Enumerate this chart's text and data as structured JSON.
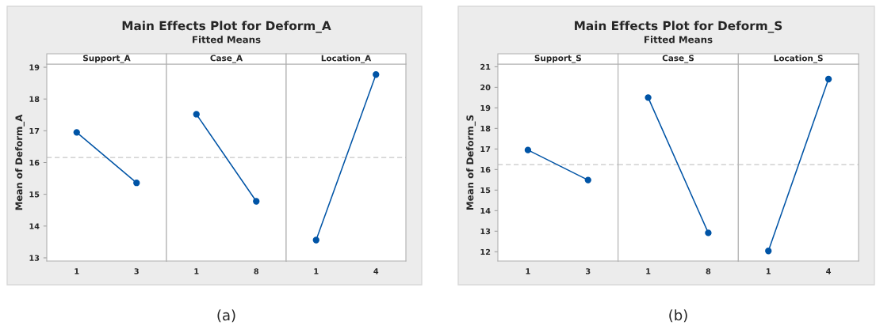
{
  "chart_data": [
    {
      "type": "line",
      "xlabel": "Support_A",
      "ylabel": "Mean of Deform_A",
      "categories": [
        "1",
        "3"
      ],
      "values": [
        16.95,
        15.36
      ],
      "color": "#0054a6",
      "marker": "circle",
      "ylim": [
        12.9,
        19.1
      ],
      "yticks": [
        13,
        14,
        15,
        16,
        17,
        18,
        19
      ],
      "ref_lines": [
        {
          "axis": "y",
          "value": 16.16,
          "color": "#c8c8c8",
          "line_style": "dashed"
        }
      ],
      "grid": false
    },
    {
      "type": "line",
      "title": "Main Effects Plot for Deform_A",
      "subtitle": "Fitted Means",
      "annotations": [
        "(a)"
      ],
      "xlabel": "Case_A",
      "categories": [
        "1",
        "8"
      ],
      "values": [
        17.52,
        14.78
      ],
      "color": "#0054a6",
      "marker": "circle",
      "ylim": [
        12.9,
        19.1
      ],
      "tick_labels": "x",
      "ref_lines": [
        {
          "axis": "y",
          "value": 16.16,
          "color": "#c8c8c8",
          "line_style": "dashed"
        }
      ],
      "grid": false
    },
    {
      "type": "line",
      "xlabel": "Location_A",
      "categories": [
        "1",
        "4"
      ],
      "values": [
        13.56,
        18.77
      ],
      "color": "#0054a6",
      "marker": "circle",
      "ylim": [
        12.9,
        19.1
      ],
      "tick_labels": "x",
      "ref_lines": [
        {
          "axis": "y",
          "value": 16.16,
          "color": "#c8c8c8",
          "line_style": "dashed"
        }
      ],
      "grid": false
    },
    {
      "type": "line",
      "xlabel": "Support_S",
      "ylabel": "Mean of Deform_S",
      "categories": [
        "1",
        "3"
      ],
      "values": [
        16.95,
        15.49
      ],
      "color": "#0054a6",
      "marker": "circle",
      "ylim": [
        11.55,
        21.13
      ],
      "yticks": [
        12,
        13,
        14,
        15,
        16,
        17,
        18,
        19,
        20,
        21
      ],
      "ref_lines": [
        {
          "axis": "y",
          "value": 16.24,
          "color": "#c8c8c8",
          "line_style": "dashed"
        }
      ],
      "grid": false
    },
    {
      "type": "line",
      "title": "Main Effects Plot for Deform_S",
      "subtitle": "Fitted Means",
      "annotations": [
        "(b)"
      ],
      "xlabel": "Case_S",
      "categories": [
        "1",
        "8"
      ],
      "values": [
        19.5,
        12.92
      ],
      "color": "#0054a6",
      "marker": "circle",
      "ylim": [
        11.55,
        21.13
      ],
      "tick_labels": "x",
      "ref_lines": [
        {
          "axis": "y",
          "value": 16.24,
          "color": "#c8c8c8",
          "line_style": "dashed"
        }
      ],
      "grid": false
    },
    {
      "type": "line",
      "xlabel": "Location_S",
      "categories": [
        "1",
        "4"
      ],
      "values": [
        12.04,
        20.4
      ],
      "color": "#0054a6",
      "marker": "circle",
      "ylim": [
        11.55,
        21.13
      ],
      "tick_labels": "x",
      "ref_lines": [
        {
          "axis": "y",
          "value": 16.24,
          "color": "#c8c8c8",
          "line_style": "dashed"
        }
      ],
      "grid": false
    }
  ]
}
